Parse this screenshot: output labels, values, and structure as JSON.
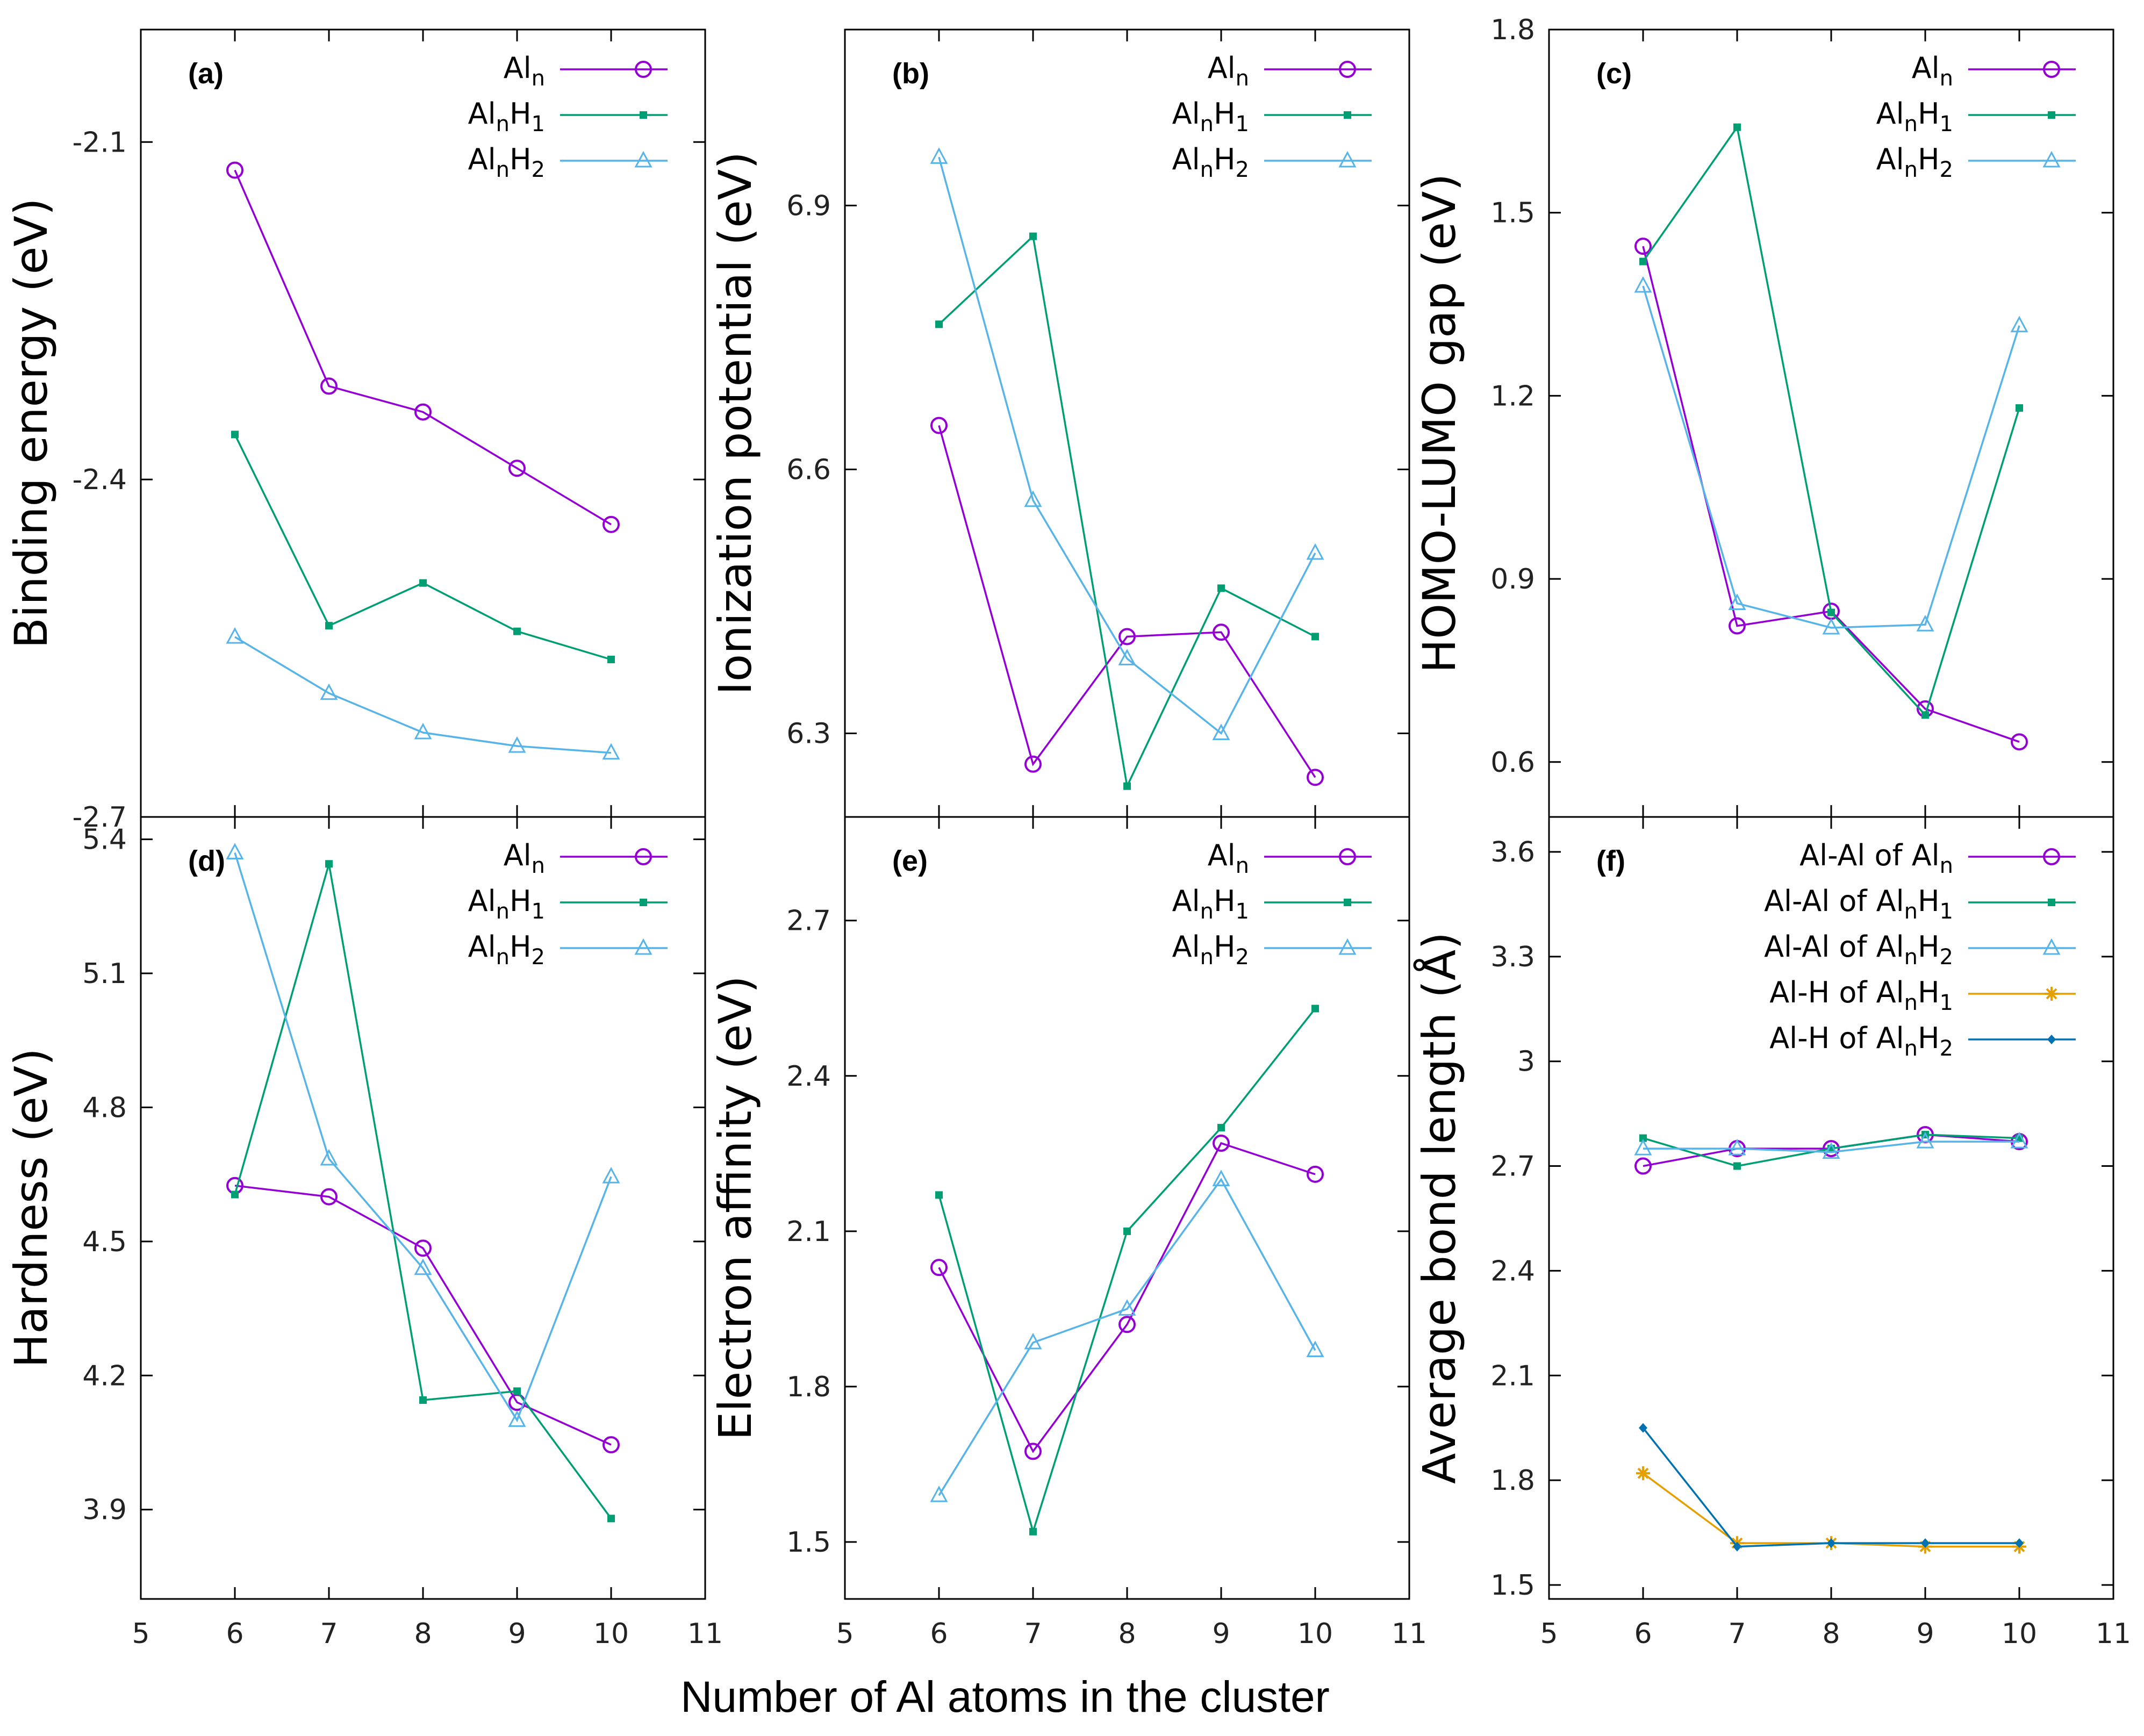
{
  "figure": {
    "xlabel": "Number of Al atoms in the cluster",
    "x_ticks": [
      "5",
      "6",
      "7",
      "8",
      "9",
      "10",
      "11"
    ]
  },
  "colors": {
    "Al_n": "#9400d3",
    "Al_nH_1": "#009e73",
    "Al_nH_2": "#56b4e9",
    "AlH_1": "#e69f00",
    "AlH_2": "#0072b2"
  },
  "chart_data": [
    {
      "panel": "(a)",
      "type": "line",
      "ylabel": "Binding energy (eV)",
      "xlim": [
        5,
        11
      ],
      "ylim": [
        -2.7,
        -2.0
      ],
      "yticks": [
        -2.1,
        -2.4,
        -2.7
      ],
      "ytick_labels": [
        "-2.1",
        "-2.4",
        "-2.7"
      ],
      "x": [
        6,
        7,
        8,
        9,
        10
      ],
      "series": [
        {
          "name": "Al",
          "sub": "n",
          "suffix": "",
          "suffix_sub": "",
          "marker": "circle",
          "color": "#9400d3",
          "values": [
            -2.125,
            -2.317,
            -2.34,
            -2.39,
            -2.44
          ]
        },
        {
          "name": "Al",
          "sub": "n",
          "suffix": "H",
          "suffix_sub": "1",
          "marker": "square",
          "color": "#009e73",
          "values": [
            -2.36,
            -2.53,
            -2.492,
            -2.535,
            -2.56
          ]
        },
        {
          "name": "Al",
          "sub": "n",
          "suffix": "H",
          "suffix_sub": "2",
          "marker": "triangle",
          "color": "#56b4e9",
          "values": [
            -2.54,
            -2.59,
            -2.625,
            -2.637,
            -2.643
          ]
        }
      ]
    },
    {
      "panel": "(b)",
      "type": "line",
      "ylabel": "Ionization potential (eV)",
      "xlim": [
        5,
        11
      ],
      "ylim": [
        6.205,
        7.1
      ],
      "yticks": [
        6.3,
        6.6,
        6.9
      ],
      "ytick_labels": [
        "6.3",
        "6.6",
        "6.9"
      ],
      "x": [
        6,
        7,
        8,
        9,
        10
      ],
      "series": [
        {
          "name": "Al",
          "sub": "n",
          "suffix": "",
          "suffix_sub": "",
          "marker": "circle",
          "color": "#9400d3",
          "values": [
            6.65,
            6.265,
            6.41,
            6.415,
            6.25
          ]
        },
        {
          "name": "Al",
          "sub": "n",
          "suffix": "H",
          "suffix_sub": "1",
          "marker": "square",
          "color": "#009e73",
          "values": [
            6.765,
            6.865,
            6.24,
            6.465,
            6.41
          ]
        },
        {
          "name": "Al",
          "sub": "n",
          "suffix": "H",
          "suffix_sub": "2",
          "marker": "triangle",
          "color": "#56b4e9",
          "values": [
            6.955,
            6.565,
            6.385,
            6.3,
            6.505
          ]
        }
      ]
    },
    {
      "panel": "(c)",
      "type": "line",
      "ylabel": "HOMO-LUMO gap (eV)",
      "xlim": [
        5,
        11
      ],
      "ylim": [
        0.51,
        1.8
      ],
      "yticks": [
        0.6,
        0.9,
        1.2,
        1.5,
        1.8
      ],
      "ytick_labels": [
        "0.6",
        "0.9",
        "1.2",
        "1.5",
        "1.8"
      ],
      "x": [
        6,
        7,
        8,
        9,
        10
      ],
      "series": [
        {
          "name": "Al",
          "sub": "n",
          "suffix": "",
          "suffix_sub": "",
          "marker": "circle",
          "color": "#9400d3",
          "values": [
            1.445,
            0.823,
            0.847,
            0.687,
            0.633
          ]
        },
        {
          "name": "Al",
          "sub": "n",
          "suffix": "H",
          "suffix_sub": "1",
          "marker": "square",
          "color": "#009e73",
          "values": [
            1.42,
            1.64,
            0.845,
            0.677,
            1.18
          ]
        },
        {
          "name": "Al",
          "sub": "n",
          "suffix": "H",
          "suffix_sub": "2",
          "marker": "triangle",
          "color": "#56b4e9",
          "values": [
            1.38,
            0.86,
            0.82,
            0.825,
            1.315
          ]
        }
      ]
    },
    {
      "panel": "(d)",
      "type": "line",
      "ylabel": "Hardness (eV)",
      "xlim": [
        5,
        11
      ],
      "ylim": [
        3.7,
        5.45
      ],
      "yticks": [
        3.9,
        4.2,
        4.5,
        4.8,
        5.1,
        5.4
      ],
      "ytick_labels": [
        "3.9",
        "4.2",
        "4.5",
        "4.8",
        "5.1",
        "5.4"
      ],
      "x": [
        6,
        7,
        8,
        9,
        10
      ],
      "series": [
        {
          "name": "Al",
          "sub": "n",
          "suffix": "",
          "suffix_sub": "",
          "marker": "circle",
          "color": "#9400d3",
          "values": [
            4.625,
            4.6,
            4.485,
            4.14,
            4.045
          ]
        },
        {
          "name": "Al",
          "sub": "n",
          "suffix": "H",
          "suffix_sub": "1",
          "marker": "square",
          "color": "#009e73",
          "values": [
            4.605,
            5.345,
            4.145,
            4.165,
            3.88
          ]
        },
        {
          "name": "Al",
          "sub": "n",
          "suffix": "H",
          "suffix_sub": "2",
          "marker": "triangle",
          "color": "#56b4e9",
          "values": [
            5.37,
            4.685,
            4.44,
            4.1,
            4.645
          ]
        }
      ]
    },
    {
      "panel": "(e)",
      "type": "line",
      "ylabel": "Electron affinity (eV)",
      "xlim": [
        5,
        11
      ],
      "ylim": [
        1.39,
        2.9
      ],
      "yticks": [
        1.5,
        1.8,
        2.1,
        2.4,
        2.7
      ],
      "ytick_labels": [
        "1.5",
        "1.8",
        "2.1",
        "2.4",
        "2.7"
      ],
      "x": [
        6,
        7,
        8,
        9,
        10
      ],
      "series": [
        {
          "name": "Al",
          "sub": "n",
          "suffix": "",
          "suffix_sub": "",
          "marker": "circle",
          "color": "#9400d3",
          "values": [
            2.03,
            1.675,
            1.92,
            2.27,
            2.21
          ]
        },
        {
          "name": "Al",
          "sub": "n",
          "suffix": "H",
          "suffix_sub": "1",
          "marker": "square",
          "color": "#009e73",
          "values": [
            2.17,
            1.52,
            2.1,
            2.3,
            2.53
          ]
        },
        {
          "name": "Al",
          "sub": "n",
          "suffix": "H",
          "suffix_sub": "2",
          "marker": "triangle",
          "color": "#56b4e9",
          "values": [
            1.59,
            1.885,
            1.95,
            2.2,
            1.87
          ]
        }
      ]
    },
    {
      "panel": "(f)",
      "type": "line",
      "ylabel": "Average bond length (Å)",
      "xlim": [
        5,
        11
      ],
      "ylim": [
        1.46,
        3.7
      ],
      "yticks": [
        1.5,
        1.8,
        2.1,
        2.4,
        2.7,
        3.0,
        3.3,
        3.6
      ],
      "ytick_labels": [
        "1.5",
        "1.8",
        "2.1",
        "2.4",
        "2.7",
        "3",
        "3.3",
        "3.6"
      ],
      "x": [
        6,
        7,
        8,
        9,
        10
      ],
      "series": [
        {
          "name": "Al-Al of Al",
          "sub": "n",
          "suffix": "",
          "suffix_sub": "",
          "marker": "circle",
          "color": "#9400d3",
          "values": [
            2.7,
            2.75,
            2.75,
            2.79,
            2.77
          ]
        },
        {
          "name": "Al-Al of Al",
          "sub": "n",
          "suffix": "H",
          "suffix_sub": "1",
          "marker": "square",
          "color": "#009e73",
          "values": [
            2.78,
            2.7,
            2.75,
            2.79,
            2.78
          ]
        },
        {
          "name": "Al-Al of Al",
          "sub": "n",
          "suffix": "H",
          "suffix_sub": "2",
          "marker": "triangle",
          "color": "#56b4e9",
          "values": [
            2.75,
            2.75,
            2.74,
            2.77,
            2.77
          ]
        },
        {
          "name": "Al-H of Al",
          "sub": "n",
          "suffix": "H",
          "suffix_sub": "1",
          "marker": "star",
          "color": "#e69f00",
          "values": [
            1.82,
            1.62,
            1.62,
            1.61,
            1.61
          ]
        },
        {
          "name": "Al-H of Al",
          "sub": "n",
          "suffix": "H",
          "suffix_sub": "2",
          "marker": "diamond",
          "color": "#0072b2",
          "values": [
            1.95,
            1.61,
            1.62,
            1.62,
            1.62
          ]
        }
      ]
    }
  ]
}
